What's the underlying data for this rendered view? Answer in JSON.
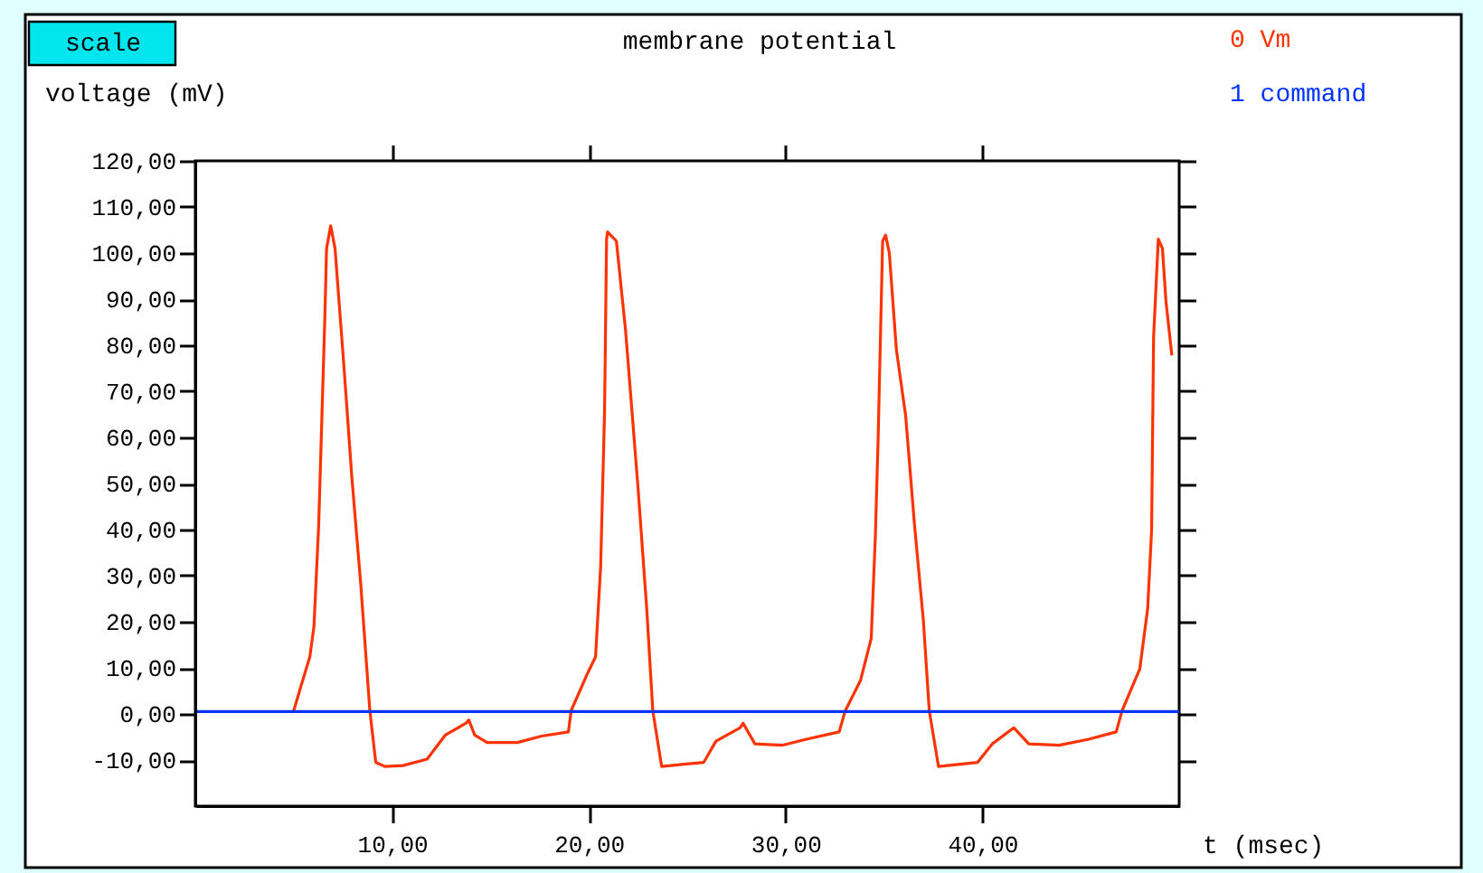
{
  "chart_data": {
    "type": "line",
    "title": "membrane potential",
    "xlabel": "t (msec)",
    "ylabel": "voltage (mV)",
    "annotations": [
      "scale"
    ],
    "xlim": [
      0,
      50
    ],
    "ylim": [
      -20,
      120
    ],
    "xticks": [
      {
        "value": 10,
        "label": "10,00"
      },
      {
        "value": 20,
        "label": "20,00"
      },
      {
        "value": 30,
        "label": "30,00"
      },
      {
        "value": 40,
        "label": "40,00"
      }
    ],
    "yticks": [
      {
        "value": -10,
        "label": "-10,00"
      },
      {
        "value": 0,
        "label": "0,00"
      },
      {
        "value": 10,
        "label": "10,00"
      },
      {
        "value": 20,
        "label": "20,00"
      },
      {
        "value": 30,
        "label": "30,00"
      },
      {
        "value": 40,
        "label": "40,00"
      },
      {
        "value": 50,
        "label": "50,00"
      },
      {
        "value": 60,
        "label": "60,00"
      },
      {
        "value": 70,
        "label": "70,00"
      },
      {
        "value": 80,
        "label": "80,00"
      },
      {
        "value": 90,
        "label": "90,00"
      },
      {
        "value": 100,
        "label": "100,00"
      },
      {
        "value": 110,
        "label": "110,00"
      },
      {
        "value": 120,
        "label": "120,00"
      }
    ],
    "grid": false,
    "line_style": "solid",
    "marker": "none",
    "series": [
      {
        "name": "0 Vm",
        "color": "#ff3300",
        "x": [
          5.0,
          5.36,
          5.82,
          6.03,
          6.27,
          6.58,
          6.67,
          6.88,
          7.1,
          7.56,
          7.95,
          8.41,
          8.87,
          9.17,
          9.63,
          10.55,
          11.78,
          12.7,
          13.76,
          13.9,
          14.2,
          14.83,
          16.37,
          17.6,
          18.96,
          19.1,
          19.9,
          20.34,
          20.6,
          20.8,
          20.9,
          20.95,
          21.4,
          21.87,
          22.5,
          22.94,
          23.25,
          23.7,
          25.84,
          26.46,
          27.68,
          27.84,
          28.44,
          29.82,
          31.05,
          32.72,
          33.03,
          33.8,
          34.35,
          34.56,
          34.7,
          34.93,
          35.08,
          35.27,
          35.63,
          36.1,
          36.55,
          37.0,
          37.3,
          37.77,
          39.76,
          40.5,
          41.6,
          42.36,
          43.9,
          45.4,
          46.8,
          47.1,
          48.0,
          48.4,
          48.6,
          48.7,
          48.94,
          49.15,
          49.33,
          49.63
        ],
        "values": [
          0.7,
          5.9,
          12.4,
          19,
          41,
          85.6,
          101,
          105.9,
          101,
          75,
          51.6,
          28,
          0.7,
          -10.5,
          -11.4,
          -11.2,
          -9.8,
          -4.6,
          -2,
          -1.3,
          -4.6,
          -6.2,
          -6.2,
          -4.8,
          -3.9,
          0.7,
          8.5,
          12.4,
          32,
          66,
          103,
          104.6,
          102.6,
          83,
          49,
          22.9,
          0.7,
          -11.4,
          -10.5,
          -5.9,
          -3,
          -2,
          -6.5,
          -6.8,
          -5.5,
          -3.9,
          0.7,
          7.2,
          16.4,
          38.5,
          59.5,
          102.6,
          103.9,
          100,
          79,
          64.7,
          41,
          20.3,
          0.7,
          -11.4,
          -10.5,
          -6.5,
          -3,
          -6.5,
          -6.8,
          -5.5,
          -3.9,
          0.7,
          9.8,
          22.9,
          39.9,
          81.7,
          103,
          101,
          89.5,
          77.8
        ]
      },
      {
        "name": "1 command",
        "color": "#0033ff",
        "x": [
          0,
          50
        ],
        "values": [
          0.5,
          0.5
        ]
      }
    ]
  }
}
